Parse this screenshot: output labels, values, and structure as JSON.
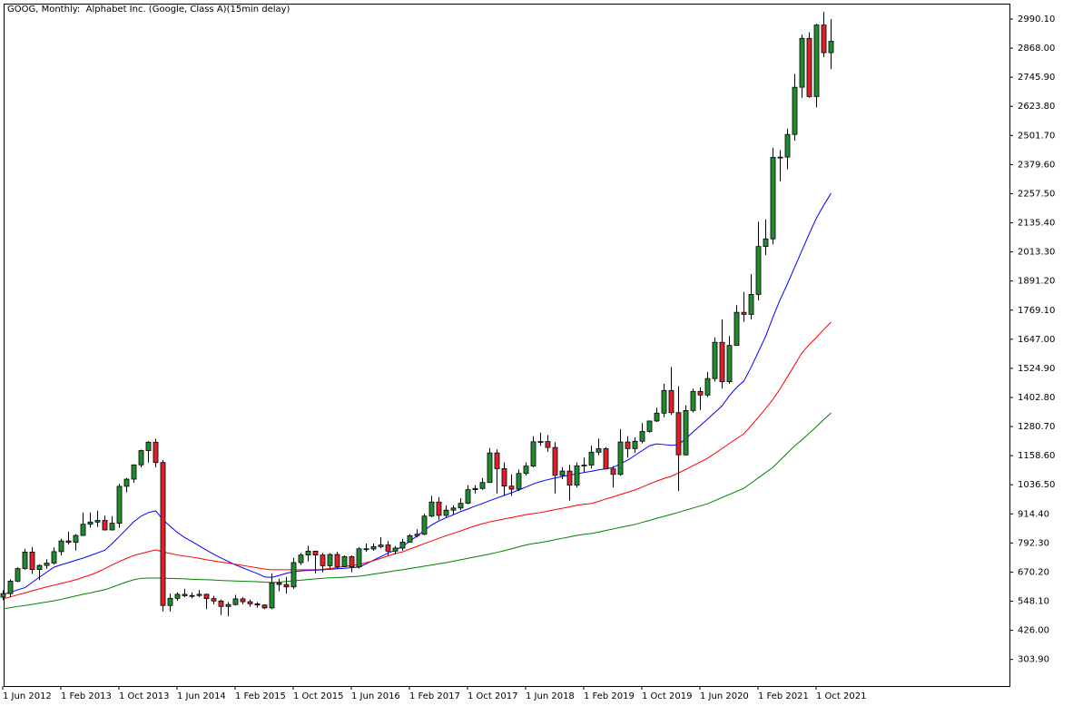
{
  "chart_data": {
    "type": "candlestick",
    "title": "GOOG, Monthly:  Alphabet Inc. (Google, Class A)(15min delay)",
    "categories": [
      "1 Jun 2012",
      null,
      null,
      null,
      null,
      null,
      null,
      null,
      "1 Feb 2013",
      null,
      null,
      null,
      null,
      null,
      null,
      null,
      "1 Oct 2013",
      null,
      null,
      null,
      null,
      null,
      null,
      null,
      "1 Jun 2014",
      null,
      null,
      null,
      null,
      null,
      null,
      null,
      "1 Feb 2015",
      null,
      null,
      null,
      null,
      null,
      null,
      null,
      "1 Oct 2015",
      null,
      null,
      null,
      null,
      null,
      null,
      null,
      "1 Jun 2016",
      null,
      null,
      null,
      null,
      null,
      null,
      null,
      "1 Feb 2017",
      null,
      null,
      null,
      null,
      null,
      null,
      null,
      "1 Oct 2017",
      null,
      null,
      null,
      null,
      null,
      null,
      null,
      "1 Jun 2018",
      null,
      null,
      null,
      null,
      null,
      null,
      null,
      "1 Feb 2019",
      null,
      null,
      null,
      null,
      null,
      null,
      null,
      "1 Oct 2019",
      null,
      null,
      null,
      null,
      null,
      null,
      null,
      "1 Jun 2020",
      null,
      null,
      null,
      null,
      null,
      null,
      null,
      "1 Feb 2021",
      null,
      null,
      null,
      null,
      null,
      null,
      null,
      "1 Oct 2021",
      null,
      null
    ],
    "open": [
      565,
      580,
      632,
      685,
      754,
      681,
      698,
      708,
      756,
      801,
      795,
      824,
      871,
      880,
      887,
      847,
      875,
      1030,
      1060,
      1120,
      1180,
      1215,
      1130,
      530,
      560,
      577,
      571,
      572,
      577,
      559,
      549,
      526,
      534,
      558,
      546,
      537,
      532,
      520,
      625,
      618,
      608,
      710,
      742,
      758,
      742,
      697,
      744,
      693,
      735,
      692,
      768,
      767,
      777,
      784,
      758,
      771,
      796,
      823,
      829,
      905,
      964,
      908,
      930,
      939,
      959,
      1016,
      1021,
      1046,
      1170,
      1104,
      1031,
      1018,
      1084,
      1115,
      1217,
      1218,
      1193,
      1076,
      1094,
      1035,
      1116,
      1119,
      1173,
      1188,
      1103,
      1080,
      1216,
      1188,
      1219,
      1260,
      1304,
      1337,
      1432,
      1339,
      1162,
      1348,
      1428,
      1413,
      1482,
      1634,
      1469,
      1621,
      1760,
      1751,
      1835,
      2036,
      2068,
      2410,
      2411,
      2506,
      2704,
      2909,
      2665,
      2965,
      2849
    ],
    "high": [
      594,
      640,
      690,
      768,
      775,
      703,
      724,
      774,
      810,
      840,
      830,
      920,
      920,
      928,
      907,
      905,
      1040,
      1065,
      1122,
      1184,
      1220,
      1230,
      1140,
      580,
      585,
      600,
      585,
      595,
      580,
      570,
      555,
      545,
      575,
      565,
      555,
      545,
      535,
      665,
      642,
      650,
      730,
      750,
      780,
      760,
      750,
      750,
      755,
      740,
      740,
      775,
      790,
      790,
      816,
      800,
      780,
      810,
      830,
      850,
      915,
      990,
      985,
      950,
      950,
      980,
      1035,
      1035,
      1065,
      1190,
      1185,
      1130,
      1080,
      1100,
      1130,
      1240,
      1255,
      1245,
      1215,
      1110,
      1120,
      1130,
      1150,
      1200,
      1230,
      1195,
      1115,
      1270,
      1240,
      1235,
      1295,
      1305,
      1360,
      1460,
      1530,
      1450,
      1370,
      1440,
      1445,
      1510,
      1655,
      1730,
      1660,
      1790,
      1845,
      1920,
      2140,
      2150,
      2450,
      2440,
      2530,
      2760,
      2925,
      2935,
      2970,
      3020,
      2990
    ],
    "low": [
      553,
      565,
      628,
      680,
      663,
      636,
      684,
      702,
      740,
      786,
      761,
      822,
      857,
      860,
      845,
      845,
      856,
      1005,
      1045,
      1110,
      1130,
      1110,
      505,
      505,
      550,
      565,
      560,
      565,
      515,
      535,
      490,
      485,
      530,
      535,
      525,
      520,
      515,
      515,
      590,
      580,
      600,
      700,
      715,
      665,
      670,
      685,
      685,
      690,
      670,
      685,
      755,
      760,
      770,
      740,
      745,
      760,
      795,
      815,
      825,
      900,
      890,
      900,
      910,
      930,
      955,
      1000,
      1015,
      1045,
      1000,
      990,
      990,
      1010,
      1075,
      1110,
      1200,
      1175,
      1000,
      1060,
      970,
      1025,
      1090,
      1105,
      1160,
      1100,
      1025,
      1075,
      1150,
      1170,
      1210,
      1255,
      1300,
      1320,
      1330,
      1010,
      1160,
      1340,
      1350,
      1405,
      1470,
      1440,
      1460,
      1620,
      1720,
      1730,
      1810,
      2000,
      2045,
      2310,
      2360,
      2480,
      2660,
      2660,
      2620,
      2830,
      2780
    ],
    "close": [
      580,
      632,
      685,
      754,
      681,
      698,
      708,
      756,
      801,
      795,
      824,
      871,
      880,
      887,
      847,
      875,
      1030,
      1060,
      1120,
      1180,
      1215,
      1130,
      530,
      560,
      577,
      571,
      572,
      577,
      559,
      549,
      526,
      534,
      558,
      546,
      537,
      532,
      520,
      625,
      618,
      608,
      710,
      742,
      758,
      742,
      697,
      744,
      693,
      735,
      692,
      768,
      767,
      777,
      784,
      758,
      771,
      796,
      823,
      829,
      905,
      964,
      908,
      930,
      939,
      959,
      1016,
      1021,
      1046,
      1170,
      1104,
      1031,
      1018,
      1084,
      1115,
      1217,
      1218,
      1193,
      1076,
      1094,
      1035,
      1116,
      1119,
      1173,
      1188,
      1103,
      1080,
      1216,
      1188,
      1219,
      1260,
      1304,
      1337,
      1432,
      1339,
      1162,
      1348,
      1428,
      1413,
      1482,
      1634,
      1469,
      1621,
      1760,
      1751,
      1835,
      2036,
      2068,
      2410,
      2411,
      2506,
      2704,
      2909,
      2665,
      2965,
      2849,
      2897
    ],
    "up_color": "#1e8c2e",
    "down_color": "#e0202a",
    "lines": [
      {
        "color": "#0000ff",
        "values": [
          577,
          586,
          596,
          605,
          627,
          649,
          670,
          691,
          701,
          710,
          720,
          729,
          740,
          751,
          762,
          790,
          820,
          851,
          882,
          905,
          920,
          927,
          890,
          862,
          836,
          815,
          798,
          780,
          762,
          745,
          729,
          715,
          700,
          688,
          676,
          664,
          650,
          648,
          656,
          665,
          672,
          675,
          677,
          678,
          680,
          682,
          684,
          686,
          689,
          691,
          705,
          720,
          735,
          750,
          762,
          778,
          800,
          822,
          845,
          868,
          885,
          898,
          911,
          924,
          935,
          947,
          958,
          970,
          981,
          992,
          1003,
          1015,
          1027,
          1040,
          1050,
          1058,
          1065,
          1071,
          1077,
          1082,
          1088,
          1093,
          1099,
          1104,
          1109,
          1125,
          1140,
          1160,
          1180,
          1200,
          1208,
          1205,
          1202,
          1205,
          1230,
          1258,
          1285,
          1312,
          1340,
          1368,
          1410,
          1445,
          1472,
          1530,
          1595,
          1660,
          1740,
          1814,
          1880,
          1950,
          2020,
          2090,
          2156,
          2210,
          2259
        ]
      },
      {
        "color": "#ff0000",
        "values": [
          558,
          566,
          575,
          583,
          592,
          600,
          608,
          615,
          623,
          630,
          638,
          648,
          658,
          670,
          685,
          700,
          715,
          728,
          740,
          748,
          756,
          763,
          755,
          748,
          742,
          737,
          733,
          728,
          722,
          717,
          712,
          708,
          703,
          698,
          693,
          688,
          683,
          680,
          680,
          680,
          680,
          680,
          680,
          680,
          682,
          685,
          689,
          694,
          698,
          702,
          710,
          718,
          728,
          738,
          748,
          755,
          767,
          778,
          790,
          801,
          812,
          823,
          833,
          843,
          854,
          864,
          873,
          881,
          887,
          893,
          899,
          905,
          911,
          916,
          920,
          926,
          932,
          938,
          944,
          950,
          955,
          958,
          967,
          977,
          986,
          996,
          1005,
          1015,
          1027,
          1040,
          1052,
          1063,
          1072,
          1086,
          1101,
          1117,
          1132,
          1148,
          1168,
          1189,
          1210,
          1230,
          1251,
          1285,
          1320,
          1357,
          1395,
          1440,
          1490,
          1540,
          1590,
          1625,
          1655,
          1688,
          1719
        ]
      },
      {
        "color": "#008000",
        "values": [
          516,
          521,
          526,
          530,
          535,
          540,
          545,
          550,
          556,
          563,
          570,
          577,
          583,
          590,
          596,
          607,
          618,
          629,
          638,
          644,
          645,
          645,
          645,
          644,
          643,
          642,
          640,
          639,
          638,
          637,
          635,
          634,
          633,
          632,
          631,
          630,
          628,
          626,
          628,
          631,
          634,
          636,
          639,
          642,
          644,
          646,
          647,
          649,
          651,
          653,
          657,
          662,
          666,
          671,
          676,
          680,
          685,
          690,
          695,
          700,
          705,
          710,
          716,
          722,
          728,
          734,
          740,
          746,
          753,
          760,
          768,
          776,
          784,
          790,
          794,
          800,
          806,
          812,
          818,
          824,
          829,
          832,
          838,
          845,
          851,
          858,
          864,
          870,
          879,
          887,
          896,
          904,
          912,
          921,
          930,
          939,
          948,
          957,
          970,
          983,
          996,
          1009,
          1022,
          1044,
          1066,
          1088,
          1110,
          1140,
          1170,
          1200,
          1225,
          1253,
          1281,
          1310,
          1338
        ]
      }
    ],
    "ylim": [
      192.2,
      3054.8
    ],
    "yticks": [
      {
        "value": 2990.1,
        "label": "2990.10"
      },
      {
        "value": 2868,
        "label": "2868.00"
      },
      {
        "value": 2745.9,
        "label": "2745.90"
      },
      {
        "value": 2623.8,
        "label": "2623.80"
      },
      {
        "value": 2501.7,
        "label": "2501.70"
      },
      {
        "value": 2379.6,
        "label": "2379.60"
      },
      {
        "value": 2257.5,
        "label": "2257.50"
      },
      {
        "value": 2135.4,
        "label": "2135.40"
      },
      {
        "value": 2013.3,
        "label": "2013.30"
      },
      {
        "value": 1891.2,
        "label": "1891.20"
      },
      {
        "value": 1769.1,
        "label": "1769.10"
      },
      {
        "value": 1647,
        "label": "1647.00"
      },
      {
        "value": 1524.9,
        "label": "1524.90"
      },
      {
        "value": 1402.8,
        "label": "1402.80"
      },
      {
        "value": 1280.7,
        "label": "1280.70"
      },
      {
        "value": 1158.6,
        "label": "1158.60"
      },
      {
        "value": 1036.5,
        "label": "1036.50"
      },
      {
        "value": 914.4,
        "label": "914.40"
      },
      {
        "value": 792.3,
        "label": "792.30"
      },
      {
        "value": 670.2,
        "label": "670.20"
      },
      {
        "value": 548.1,
        "label": "548.10"
      },
      {
        "value": 426,
        "label": "426.00"
      },
      {
        "value": 303.9,
        "label": "303.90"
      }
    ],
    "grid": false
  }
}
